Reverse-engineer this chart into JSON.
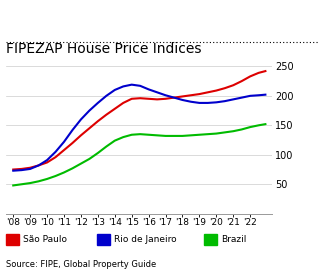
{
  "title": "FIPEZAP House Price Indices",
  "source": "Source: FIPE, Global Property Guide",
  "years": [
    2008,
    2008.5,
    2009,
    2009.5,
    2010,
    2010.5,
    2011,
    2011.5,
    2012,
    2012.5,
    2013,
    2013.5,
    2014,
    2014.5,
    2015,
    2015.5,
    2016,
    2016.5,
    2017,
    2017.5,
    2018,
    2018.5,
    2019,
    2019.5,
    2020,
    2020.5,
    2021,
    2021.5,
    2022,
    2022.5,
    2022.9
  ],
  "sao_paulo": [
    75,
    76,
    78,
    82,
    87,
    96,
    108,
    120,
    133,
    145,
    157,
    168,
    178,
    188,
    195,
    196,
    195,
    194,
    195,
    197,
    199,
    201,
    203,
    206,
    209,
    213,
    218,
    225,
    233,
    239,
    242
  ],
  "rio_de_janeiro": [
    73,
    74,
    76,
    82,
    91,
    105,
    122,
    142,
    160,
    175,
    188,
    200,
    210,
    216,
    219,
    217,
    211,
    206,
    201,
    197,
    193,
    190,
    188,
    188,
    189,
    191,
    194,
    197,
    200,
    201,
    202
  ],
  "brazil": [
    48,
    50,
    52,
    55,
    59,
    64,
    70,
    77,
    85,
    93,
    103,
    114,
    124,
    130,
    134,
    135,
    134,
    133,
    132,
    132,
    132,
    133,
    134,
    135,
    136,
    138,
    140,
    143,
    147,
    150,
    152
  ],
  "sao_paulo_color": "#dd0000",
  "rio_de_janeiro_color": "#0000cc",
  "brazil_color": "#00bb00",
  "ylim": [
    0,
    265
  ],
  "yticks": [
    50,
    100,
    150,
    200,
    250
  ],
  "xtick_labels": [
    "'08",
    "'09",
    "'10",
    "'11",
    "'12",
    "'13",
    "'14",
    "'15",
    "'16",
    "'17",
    "'18",
    "'19",
    "'20",
    "'21",
    "'22"
  ],
  "xtick_years": [
    2008,
    2009,
    2010,
    2011,
    2012,
    2013,
    2014,
    2015,
    2016,
    2017,
    2018,
    2019,
    2020,
    2021,
    2022
  ],
  "background_color": "#ffffff",
  "grid_color": "#cccccc",
  "title_fontsize": 10,
  "legend_labels": [
    "São Paulo",
    "Rio de Janeiro",
    "Brazil"
  ],
  "line_width": 1.5
}
